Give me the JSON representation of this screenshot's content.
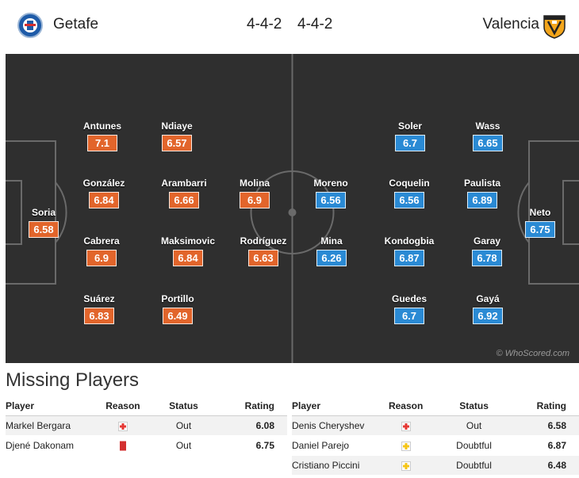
{
  "header": {
    "home_team": "Getafe",
    "away_team": "Valencia",
    "home_formation": "4-4-2",
    "away_formation": "4-4-2",
    "home_crest_icon": "getafe-crest-icon",
    "away_crest_icon": "valencia-crest-icon"
  },
  "colors": {
    "home_rating": "#e2652b",
    "away_rating": "#2a8ad4",
    "pitch": "#2f2f2f"
  },
  "pitch": {
    "watermark": "© WhoScored.com",
    "home_players": [
      {
        "name": "Soria",
        "rating": "6.58"
      },
      {
        "name": "Antunes",
        "rating": "7.1"
      },
      {
        "name": "González",
        "rating": "6.84"
      },
      {
        "name": "Cabrera",
        "rating": "6.9"
      },
      {
        "name": "Suárez",
        "rating": "6.83"
      },
      {
        "name": "Ndiaye",
        "rating": "6.57"
      },
      {
        "name": "Arambarri",
        "rating": "6.66"
      },
      {
        "name": "Maksimovic",
        "rating": "6.84"
      },
      {
        "name": "Portillo",
        "rating": "6.49"
      },
      {
        "name": "Molina",
        "rating": "6.9"
      },
      {
        "name": "Rodríguez",
        "rating": "6.63"
      }
    ],
    "away_players": [
      {
        "name": "Neto",
        "rating": "6.75"
      },
      {
        "name": "Wass",
        "rating": "6.65"
      },
      {
        "name": "Paulista",
        "rating": "6.89"
      },
      {
        "name": "Garay",
        "rating": "6.78"
      },
      {
        "name": "Gayá",
        "rating": "6.92"
      },
      {
        "name": "Soler",
        "rating": "6.7"
      },
      {
        "name": "Coquelin",
        "rating": "6.56"
      },
      {
        "name": "Kondogbia",
        "rating": "6.87"
      },
      {
        "name": "Guedes",
        "rating": "6.7"
      },
      {
        "name": "Moreno",
        "rating": "6.56"
      },
      {
        "name": "Mina",
        "rating": "6.26"
      }
    ]
  },
  "missing": {
    "title": "Missing Players",
    "headers": {
      "player": "Player",
      "reason": "Reason",
      "status": "Status",
      "rating": "Rating"
    },
    "home": [
      {
        "player": "Markel Bergara",
        "reason_icon": "injury-icon",
        "status": "Out",
        "rating": "6.08"
      },
      {
        "player": "Djené Dakonam",
        "reason_icon": "red-card-icon",
        "status": "Out",
        "rating": "6.75"
      }
    ],
    "away": [
      {
        "player": "Denis Cheryshev",
        "reason_icon": "injury-icon",
        "status": "Out",
        "rating": "6.58"
      },
      {
        "player": "Daniel Parejo",
        "reason_icon": "doubtful-icon",
        "status": "Doubtful",
        "rating": "6.87"
      },
      {
        "player": "Cristiano Piccini",
        "reason_icon": "doubtful-icon",
        "status": "Doubtful",
        "rating": "6.48"
      }
    ]
  }
}
